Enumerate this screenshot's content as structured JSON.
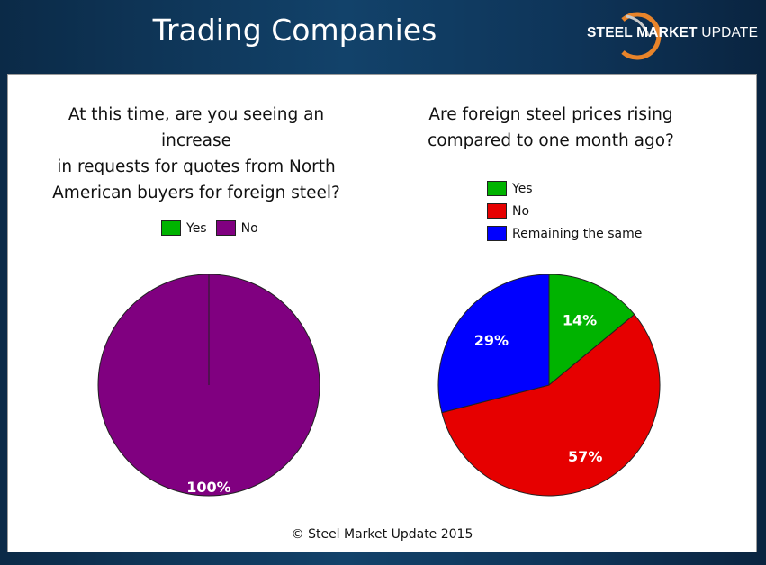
{
  "slide": {
    "title": "Trading Companies",
    "logo_text_bold": "STEEL MARKET",
    "logo_text_light": "UPDATE",
    "footer": "© Steel Market Update 2015"
  },
  "colors": {
    "yes": "#00b300",
    "no_left": "#800080",
    "no_right": "#e60000",
    "remaining": "#0000ff"
  },
  "chart_data": [
    {
      "type": "pie",
      "title": "At this time, are you seeing an increase in requests for quotes from North American buyers for foreign steel?",
      "title_lines": [
        "At this time, are you seeing an increase",
        "in requests for quotes from North",
        "American buyers for foreign steel?"
      ],
      "categories": [
        "Yes",
        "No"
      ],
      "values": [
        0,
        100
      ],
      "data_labels": [
        "",
        "100%"
      ],
      "colors": [
        "#00b300",
        "#800080"
      ],
      "legend": "top"
    },
    {
      "type": "pie",
      "title": "Are foreign steel prices rising compared to one month ago?",
      "title_lines": [
        "Are foreign steel prices rising",
        "compared to one month ago?"
      ],
      "categories": [
        "Yes",
        "No",
        "Remaining the same"
      ],
      "values": [
        14,
        57,
        29
      ],
      "data_labels": [
        "14%",
        "57%",
        "29%"
      ],
      "colors": [
        "#00b300",
        "#e60000",
        "#0000ff"
      ],
      "legend": "top-left"
    }
  ]
}
